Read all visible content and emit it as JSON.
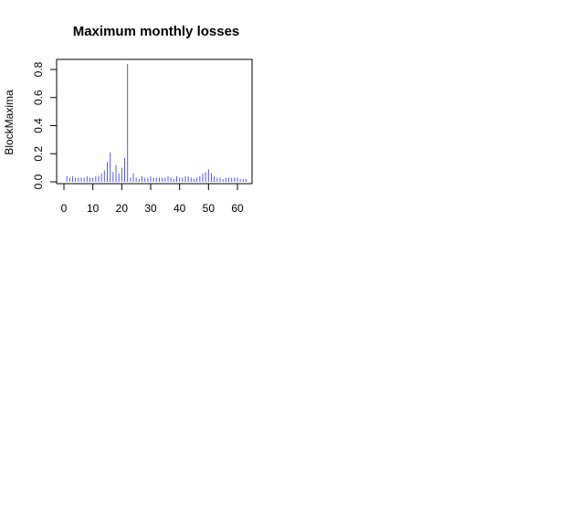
{
  "chart_data": {
    "type": "bar",
    "title": "Maximum monthly losses",
    "xlabel": "",
    "ylabel": "BlockMaxima",
    "xlim": [
      -1,
      64
    ],
    "ylim": [
      0,
      0.88
    ],
    "x_ticks": [
      0,
      10,
      20,
      30,
      40,
      50,
      60
    ],
    "x_tick_labels": [
      "0",
      "10",
      "20",
      "30",
      "40",
      "50",
      "60"
    ],
    "y_ticks": [
      0.0,
      0.2,
      0.4,
      0.6,
      0.8
    ],
    "y_tick_labels": [
      "0.0",
      "0.2",
      "0.4",
      "0.6",
      "0.8"
    ],
    "grid": false,
    "color": "#5555ff",
    "x": [
      1,
      2,
      3,
      4,
      5,
      6,
      7,
      8,
      9,
      10,
      11,
      12,
      13,
      14,
      15,
      16,
      17,
      18,
      19,
      20,
      21,
      22,
      23,
      24,
      25,
      26,
      27,
      28,
      29,
      30,
      31,
      32,
      33,
      34,
      35,
      36,
      37,
      38,
      39,
      40,
      41,
      42,
      43,
      44,
      45,
      46,
      47,
      48,
      49,
      50,
      51,
      52,
      53,
      54,
      55,
      56,
      57,
      58,
      59,
      60,
      61,
      62,
      63
    ],
    "values": [
      0.04,
      0.03,
      0.04,
      0.03,
      0.03,
      0.03,
      0.03,
      0.04,
      0.03,
      0.03,
      0.04,
      0.04,
      0.06,
      0.08,
      0.14,
      0.21,
      0.07,
      0.12,
      0.06,
      0.1,
      0.17,
      0.84,
      0.03,
      0.06,
      0.03,
      0.02,
      0.04,
      0.03,
      0.03,
      0.04,
      0.03,
      0.03,
      0.03,
      0.03,
      0.03,
      0.04,
      0.03,
      0.02,
      0.04,
      0.03,
      0.03,
      0.04,
      0.04,
      0.03,
      0.02,
      0.03,
      0.04,
      0.06,
      0.07,
      0.09,
      0.06,
      0.04,
      0.03,
      0.03,
      0.02,
      0.03,
      0.03,
      0.03,
      0.03,
      0.03,
      0.02,
      0.02,
      0.02
    ]
  }
}
